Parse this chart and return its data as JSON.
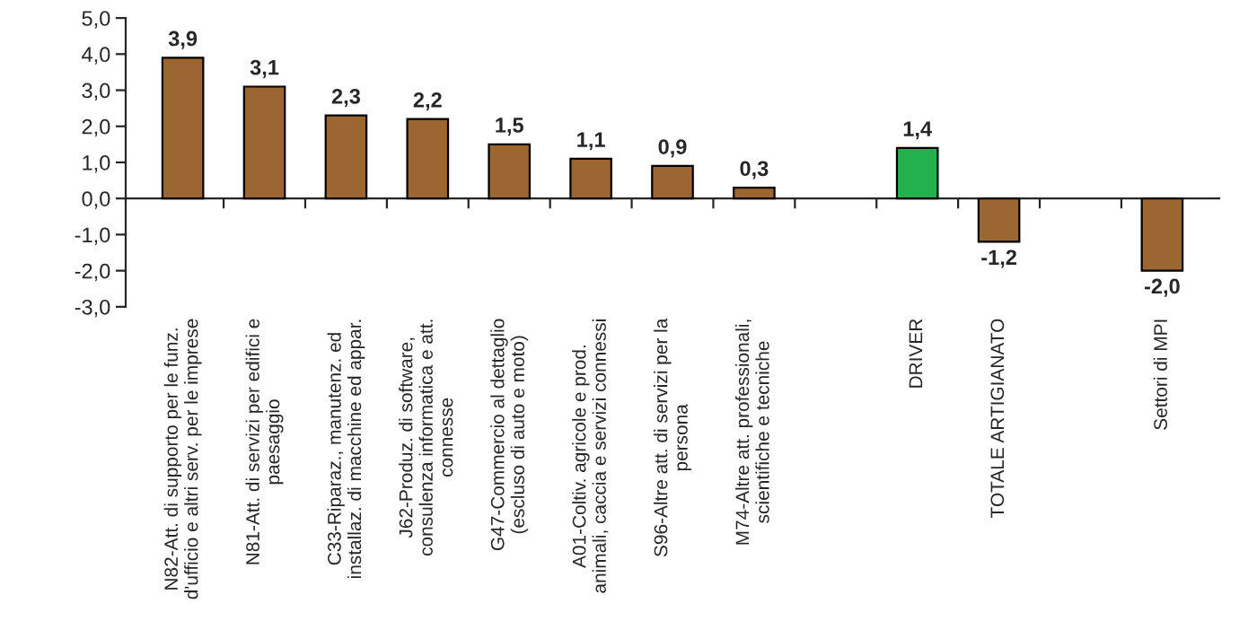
{
  "chart_data": {
    "type": "bar",
    "categories": [
      "N82-Att. di supporto per le funz.\nd'ufficio e altri serv. per le imprese",
      "N81-Att. di servizi per edifici e\npaesaggio",
      "C33-Riparaz., manutenz. ed\ninstallaz. di macchine ed appar.",
      "J62-Produz. di software,\nconsulenza informatica e att.\nconnesse",
      "G47-Commercio al dettaglio\n(escluso di auto e moto)",
      "A01-Coltiv. agricole e prod.\nanimali, caccia e servizi connessi",
      "S96-Altre att. di servizi per la\npersona",
      "M74-Altre att. professionali,\nscientifiche e tecniche",
      null,
      "DRIVER",
      "TOTALE ARTIGIANATO",
      null,
      "Settori di MPI"
    ],
    "values": [
      3.9,
      3.1,
      2.3,
      2.2,
      1.5,
      1.1,
      0.9,
      0.3,
      null,
      1.4,
      -1.2,
      null,
      -2.0
    ],
    "colors": [
      "#9c6632",
      "#9c6632",
      "#9c6632",
      "#9c6632",
      "#9c6632",
      "#9c6632",
      "#9c6632",
      "#9c6632",
      null,
      "#22b14c",
      "#9c6632",
      null,
      "#9c6632"
    ],
    "value_labels": [
      "3,9",
      "3,1",
      "2,3",
      "2,2",
      "1,5",
      "1,1",
      "0,9",
      "0,3",
      null,
      "1,4",
      "-1,2",
      null,
      "-2,0"
    ],
    "ylim": [
      -3,
      5
    ],
    "yticks": [
      {
        "value": -3,
        "label": "-3,0"
      },
      {
        "value": -2,
        "label": "-2,0"
      },
      {
        "value": -1,
        "label": "-1,0"
      },
      {
        "value": 0,
        "label": "0,0"
      },
      {
        "value": 1,
        "label": "1,0"
      },
      {
        "value": 2,
        "label": "2,0"
      },
      {
        "value": 3,
        "label": "3,0"
      },
      {
        "value": 4,
        "label": "4,0"
      },
      {
        "value": 5,
        "label": "5,0"
      }
    ],
    "legend": false
  }
}
